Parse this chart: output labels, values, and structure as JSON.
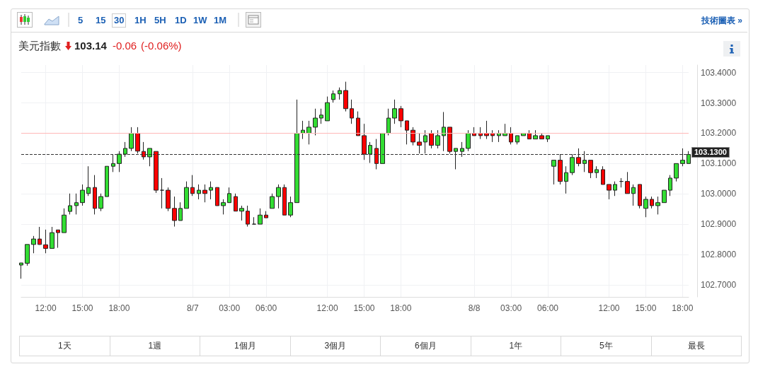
{
  "chart_data": {
    "type": "candlestick",
    "title": "美元指數",
    "subtitle": "103.14",
    "annotations": [
      "-0.06",
      "(-0.06%)",
      "5",
      "15",
      "30",
      "1H",
      "5H",
      "1D",
      "1W",
      "1M",
      "技術圖表 »",
      "1天",
      "1週",
      "1個月",
      "3個月",
      "6個月",
      "1年",
      "5年",
      "最長"
    ],
    "categories": [
      null,
      null,
      null,
      null,
      "12:00",
      null,
      null,
      null,
      null,
      null,
      "15:00",
      null,
      null,
      null,
      null,
      null,
      "18:00",
      null,
      null,
      null,
      null,
      null,
      null,
      null,
      null,
      null,
      null,
      null,
      "8/7",
      null,
      null,
      null,
      null,
      null,
      "03:00",
      null,
      null,
      null,
      null,
      null,
      "06:00",
      null,
      null,
      null,
      null,
      null,
      null,
      null,
      null,
      null,
      "12:00",
      null,
      null,
      null,
      null,
      null,
      "15:00",
      null,
      null,
      null,
      null,
      null,
      "18:00",
      null,
      null,
      null,
      null,
      null,
      null,
      null,
      null,
      null,
      null,
      null,
      "8/8",
      null,
      null,
      null,
      null,
      null,
      "03:00",
      null,
      null,
      null,
      null,
      null,
      "06:00",
      null,
      null,
      null,
      null,
      null,
      null,
      null,
      null,
      null,
      "12:00",
      null,
      null,
      null,
      null,
      null,
      "15:00",
      null,
      null,
      null,
      null,
      null,
      "18:00",
      null
    ],
    "ohlc": [
      [
        102.765,
        102.772,
        102.72,
        102.772
      ],
      [
        102.771,
        102.833,
        102.763,
        102.833
      ],
      [
        102.833,
        102.861,
        102.804,
        102.851
      ],
      [
        102.851,
        102.891,
        102.832,
        102.833
      ],
      [
        102.832,
        102.882,
        102.804,
        102.82
      ],
      [
        102.82,
        102.891,
        102.82,
        102.872
      ],
      [
        102.881,
        102.881,
        102.822,
        102.872
      ],
      [
        102.872,
        102.952,
        102.872,
        102.93
      ],
      [
        102.942,
        103.001,
        102.932,
        102.961
      ],
      [
        102.961,
        103.001,
        102.932,
        102.971
      ],
      [
        102.971,
        103.031,
        102.961,
        103.012
      ],
      [
        103.001,
        103.091,
        102.993,
        103.021
      ],
      [
        103.021,
        103.062,
        102.932,
        102.952
      ],
      [
        102.952,
        103.001,
        102.943,
        102.991
      ],
      [
        102.991,
        103.091,
        102.991,
        103.091
      ],
      [
        103.091,
        103.131,
        103.072,
        103.1
      ],
      [
        103.1,
        103.141,
        103.072,
        103.131
      ],
      [
        103.131,
        103.171,
        103.122,
        103.15
      ],
      [
        103.15,
        103.22,
        103.141,
        103.2
      ],
      [
        103.2,
        103.22,
        103.133,
        103.141
      ],
      [
        103.14,
        103.171,
        103.113,
        103.122
      ],
      [
        103.122,
        103.15,
        103.091,
        103.15
      ],
      [
        103.14,
        103.14,
        103.003,
        103.012
      ],
      [
        103.012,
        103.052,
        102.952,
        103.012
      ],
      [
        103.012,
        103.021,
        102.943,
        102.952
      ],
      [
        102.952,
        102.991,
        102.892,
        102.912
      ],
      [
        102.912,
        102.972,
        102.912,
        102.952
      ],
      [
        102.952,
        103.041,
        102.952,
        103.021
      ],
      [
        103.021,
        103.062,
        102.993,
        103.001
      ],
      [
        103.001,
        103.031,
        102.982,
        103.012
      ],
      [
        103.012,
        103.031,
        102.972,
        103.001
      ],
      [
        103.012,
        103.041,
        102.982,
        103.021
      ],
      [
        103.021,
        103.021,
        102.961,
        102.961
      ],
      [
        102.961,
        102.982,
        102.932,
        102.971
      ],
      [
        102.971,
        103.021,
        102.971,
        103.001
      ],
      [
        102.991,
        103.001,
        102.943,
        102.943
      ],
      [
        102.943,
        102.961,
        102.912,
        102.952
      ],
      [
        102.943,
        102.961,
        102.892,
        102.9
      ],
      [
        102.9,
        102.923,
        102.9,
        102.9
      ],
      [
        102.9,
        102.952,
        102.9,
        102.93
      ],
      [
        102.93,
        102.943,
        102.921,
        102.921
      ],
      [
        102.952,
        103.001,
        102.952,
        102.991
      ],
      [
        102.991,
        103.031,
        102.952,
        103.021
      ],
      [
        103.021,
        103.031,
        102.93,
        102.93
      ],
      [
        102.93,
        102.991,
        102.923,
        102.971
      ],
      [
        102.971,
        103.311,
        102.971,
        103.2
      ],
      [
        103.2,
        103.241,
        103.181,
        103.21
      ],
      [
        103.2,
        103.241,
        103.163,
        103.22
      ],
      [
        103.22,
        103.281,
        103.193,
        103.25
      ],
      [
        103.25,
        103.281,
        103.231,
        103.26
      ],
      [
        103.241,
        103.321,
        103.241,
        103.301
      ],
      [
        103.311,
        103.341,
        103.301,
        103.33
      ],
      [
        103.33,
        103.351,
        103.311,
        103.341
      ],
      [
        103.341,
        103.37,
        103.272,
        103.281
      ],
      [
        103.281,
        103.311,
        103.231,
        103.25
      ],
      [
        103.25,
        103.272,
        103.192,
        103.192
      ],
      [
        103.192,
        103.231,
        103.112,
        103.131
      ],
      [
        103.131,
        103.171,
        103.102,
        103.16
      ],
      [
        103.15,
        103.181,
        103.081,
        103.1
      ],
      [
        103.1,
        103.2,
        103.1,
        103.2
      ],
      [
        103.2,
        103.281,
        103.193,
        103.25
      ],
      [
        103.25,
        103.311,
        103.231,
        103.281
      ],
      [
        103.281,
        103.29,
        103.22,
        103.241
      ],
      [
        103.241,
        103.241,
        103.163,
        103.21
      ],
      [
        103.21,
        103.22,
        103.16,
        103.171
      ],
      [
        103.171,
        103.2,
        103.133,
        103.16
      ],
      [
        103.171,
        103.21,
        103.133,
        103.192
      ],
      [
        103.2,
        103.21,
        103.15,
        103.16
      ],
      [
        103.16,
        103.21,
        103.15,
        103.192
      ],
      [
        103.192,
        103.27,
        103.141,
        103.22
      ],
      [
        103.22,
        103.22,
        103.133,
        103.14
      ],
      [
        103.14,
        103.15,
        103.081,
        103.15
      ],
      [
        103.14,
        103.171,
        103.122,
        103.15
      ],
      [
        103.15,
        103.21,
        103.141,
        103.2
      ],
      [
        103.2,
        103.22,
        103.192,
        103.192
      ],
      [
        103.2,
        103.22,
        103.181,
        103.192
      ],
      [
        103.2,
        103.241,
        103.181,
        103.192
      ],
      [
        103.2,
        103.21,
        103.171,
        103.192
      ],
      [
        103.192,
        103.21,
        103.171,
        103.2
      ],
      [
        103.192,
        103.231,
        103.192,
        103.2
      ],
      [
        103.2,
        103.22,
        103.163,
        103.171
      ],
      [
        103.171,
        103.192,
        103.163,
        103.192
      ],
      [
        103.192,
        103.2,
        103.192,
        103.2
      ],
      [
        103.2,
        103.21,
        103.181,
        103.181
      ],
      [
        103.181,
        103.21,
        103.181,
        103.192
      ],
      [
        103.192,
        103.2,
        103.181,
        103.181
      ],
      [
        103.181,
        103.192,
        103.171,
        103.192
      ],
      [
        103.091,
        103.111,
        103.031,
        103.111
      ],
      [
        103.111,
        103.131,
        103.031,
        103.041
      ],
      [
        103.041,
        103.091,
        103.001,
        103.07
      ],
      [
        103.07,
        103.131,
        103.062,
        103.12
      ],
      [
        103.12,
        103.15,
        103.091,
        103.1
      ],
      [
        103.1,
        103.141,
        103.072,
        103.111
      ],
      [
        103.111,
        103.111,
        103.052,
        103.07
      ],
      [
        103.07,
        103.091,
        103.052,
        103.08
      ],
      [
        103.08,
        103.091,
        103.031,
        103.031
      ],
      [
        103.031,
        103.031,
        102.982,
        103.012
      ],
      [
        103.012,
        103.041,
        102.993,
        103.031
      ],
      [
        103.041,
        103.052,
        103.021,
        103.041
      ],
      [
        103.041,
        103.072,
        103.001,
        103.001
      ],
      [
        103.001,
        103.031,
        102.961,
        103.021
      ],
      [
        103.031,
        103.031,
        102.952,
        102.961
      ],
      [
        102.952,
        102.991,
        102.923,
        102.982
      ],
      [
        102.982,
        102.991,
        102.952,
        102.961
      ],
      [
        102.961,
        102.991,
        102.932,
        102.971
      ],
      [
        102.971,
        103.012,
        102.971,
        103.012
      ],
      [
        103.012,
        103.062,
        102.993,
        103.052
      ],
      [
        103.052,
        103.1,
        103.041,
        103.1
      ],
      [
        103.1,
        103.15,
        103.091,
        103.111
      ],
      [
        103.1,
        103.141,
        103.1,
        103.13
      ]
    ],
    "colors": [
      "#33dd33",
      "#33dd33",
      "#33dd33",
      "#ff0000",
      "#ff0000",
      "#33dd33",
      "#ff0000",
      "#33dd33",
      "#33dd33",
      "#33dd33",
      "#33dd33",
      "#33dd33",
      "#ff0000",
      "#33dd33",
      "#33dd33",
      "#33dd33",
      "#33dd33",
      "#33dd33",
      "#33dd33",
      "#ff0000",
      "#ff0000",
      "#33dd33",
      "#ff0000",
      "#222222",
      "#ff0000",
      "#ff0000",
      "#33dd33",
      "#33dd33",
      "#ff0000",
      "#33dd33",
      "#ff0000",
      "#33dd33",
      "#ff0000",
      "#33dd33",
      "#33dd33",
      "#ff0000",
      "#33dd33",
      "#ff0000",
      "#222222",
      "#33dd33",
      "#ff0000",
      "#33dd33",
      "#33dd33",
      "#ff0000",
      "#33dd33",
      "#33dd33",
      "#33dd33",
      "#33dd33",
      "#33dd33",
      "#33dd33",
      "#33dd33",
      "#33dd33",
      "#33dd33",
      "#ff0000",
      "#ff0000",
      "#ff0000",
      "#ff0000",
      "#33dd33",
      "#ff0000",
      "#33dd33",
      "#33dd33",
      "#33dd33",
      "#ff0000",
      "#ff0000",
      "#ff0000",
      "#ff0000",
      "#33dd33",
      "#ff0000",
      "#33dd33",
      "#33dd33",
      "#ff0000",
      "#33dd33",
      "#33dd33",
      "#33dd33",
      "#ff0000",
      "#ff0000",
      "#ff0000",
      "#ff0000",
      "#33dd33",
      "#33dd33",
      "#ff0000",
      "#33dd33",
      "#33dd33",
      "#ff0000",
      "#33dd33",
      "#ff0000",
      "#33dd33",
      "#33dd33",
      "#ff0000",
      "#33dd33",
      "#33dd33",
      "#ff0000",
      "#33dd33",
      "#ff0000",
      "#33dd33",
      "#ff0000",
      "#ff0000",
      "#33dd33",
      "#222222",
      "#ff0000",
      "#33dd33",
      "#ff0000",
      "#33dd33",
      "#ff0000",
      "#33dd33",
      "#33dd33",
      "#33dd33",
      "#33dd33",
      "#33dd33",
      "#33dd33"
    ],
    "ylim": [
      102.66,
      103.425
    ],
    "yticks": [
      {
        "value": 102.7,
        "label": "102.7000"
      },
      {
        "value": 102.8,
        "label": "102.8000"
      },
      {
        "value": 102.9,
        "label": "102.9000"
      },
      {
        "value": 103.0,
        "label": "103.0000"
      },
      {
        "value": 103.1,
        "label": "103.1000"
      },
      {
        "value": 103.2,
        "label": "103.2000"
      },
      {
        "value": 103.3,
        "label": "103.3000"
      },
      {
        "value": 103.4,
        "label": "103.4000"
      }
    ],
    "ref_lines": [
      {
        "axis": "y",
        "value": 103.2,
        "color": "#ffb8b8",
        "line_style": "solid"
      },
      {
        "axis": "y",
        "value": 103.13,
        "label": "103.1300",
        "color": "#333333",
        "line_style": "dashed"
      }
    ],
    "grid": true
  }
}
